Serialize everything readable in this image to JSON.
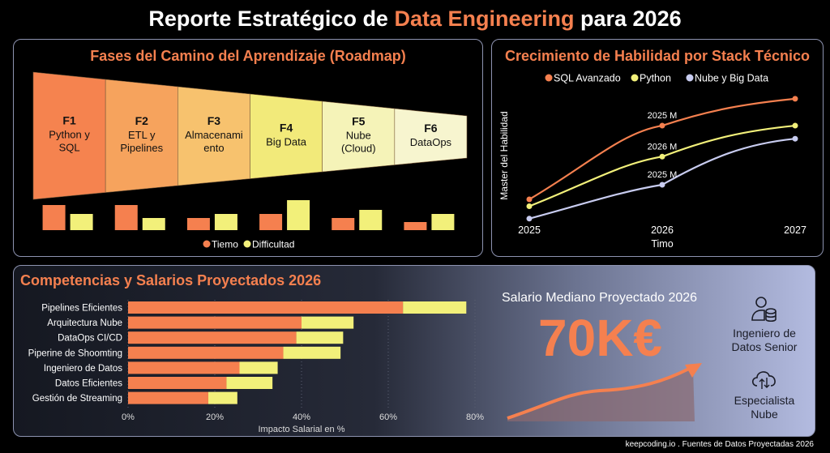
{
  "header": {
    "title_pre": "Reporte Estratégico de ",
    "title_highlight": "Data Engineering",
    "title_post": " para 2026"
  },
  "colors": {
    "orange": "#f5804f",
    "yellow": "#f2f07a",
    "lavender": "#c8ccf0"
  },
  "roadmap": {
    "title": "Fases del Camino del Aprendizaje (Roadmap)",
    "phases": [
      {
        "code": "F1",
        "line1": "Python y",
        "line2": "SQL"
      },
      {
        "code": "F2",
        "line1": "ETL y",
        "line2": "Pipelines"
      },
      {
        "code": "F3",
        "line1": "Almacenami",
        "line2": "ento"
      },
      {
        "code": "F4",
        "line1": "Big Data",
        "line2": ""
      },
      {
        "code": "F5",
        "line1": "Nube",
        "line2": "(Cloud)"
      },
      {
        "code": "F6",
        "line1": "DataOps",
        "line2": ""
      }
    ],
    "legend": [
      "Tiemo",
      "Difficultad"
    ]
  },
  "chart_data": [
    {
      "type": "bar",
      "title": "",
      "categories": [
        "F1",
        "F2",
        "F3",
        "F4",
        "F5",
        "F6"
      ],
      "series": [
        {
          "name": "Tiemo",
          "values": [
            31,
            31,
            15,
            20,
            15,
            10
          ]
        },
        {
          "name": "Difficultad",
          "values": [
            20,
            15,
            20,
            37,
            25,
            20
          ]
        }
      ],
      "legend": "bottom"
    },
    {
      "type": "line",
      "title": "Crecimiento de Habilidad por Stack Técnico",
      "xlabel": "Timo",
      "ylabel": "Master del Habilidad",
      "x": [
        "2025",
        "2026",
        "2027"
      ],
      "ylim": [
        0,
        100
      ],
      "series": [
        {
          "name": "SQL Avanzado",
          "values": [
            20,
            73.5,
            93
          ],
          "color": "#f5804f"
        },
        {
          "name": "Python",
          "values": [
            15,
            51,
            73.5
          ],
          "color": "#f2f07a"
        },
        {
          "name": "Nube y Big Data",
          "values": [
            6,
            30.6,
            64
          ],
          "color": "#c8ccf0"
        }
      ],
      "annotations": [
        "2025 M",
        "2026 M",
        "2025 M"
      ],
      "legend": "top"
    },
    {
      "type": "bar",
      "orientation": "horizontal-stacked",
      "title": "Competencias y Salarios Proyectados 2026",
      "xlabel": "Impacto Salarial en %",
      "xlim": [
        0,
        80
      ],
      "xticks": [
        "0%",
        "20%",
        "40%",
        "60%",
        "80%"
      ],
      "categories": [
        "Pipelines Eficientes",
        "Arquitectura Nube",
        "DataOps CI/CD",
        "Piperine de Shoomting",
        "Ingeniero de Datos",
        "Datos Eficientes",
        "Gestión de Streaming"
      ],
      "series": [
        {
          "values": [
            63.4,
            40,
            38.8,
            35.8,
            25.7,
            22.7,
            18.5
          ],
          "color": "#f5804f"
        },
        {
          "values": [
            14.6,
            12,
            10.8,
            13.2,
            8.8,
            10.6,
            6.7
          ],
          "color": "#f2f07a"
        }
      ]
    }
  ],
  "salary": {
    "label": "Salario Mediano Proyectado 2026",
    "value": "70K€"
  },
  "roles": [
    {
      "icon": "user-database-icon",
      "line1": "Ingeniero de",
      "line2": "Datos Senior"
    },
    {
      "icon": "cloud-transfer-icon",
      "line1": "Especialista",
      "line2": "Nube"
    }
  ],
  "footer": "keepcoding.io . Fuentes de Datos Proyectadas 2026"
}
